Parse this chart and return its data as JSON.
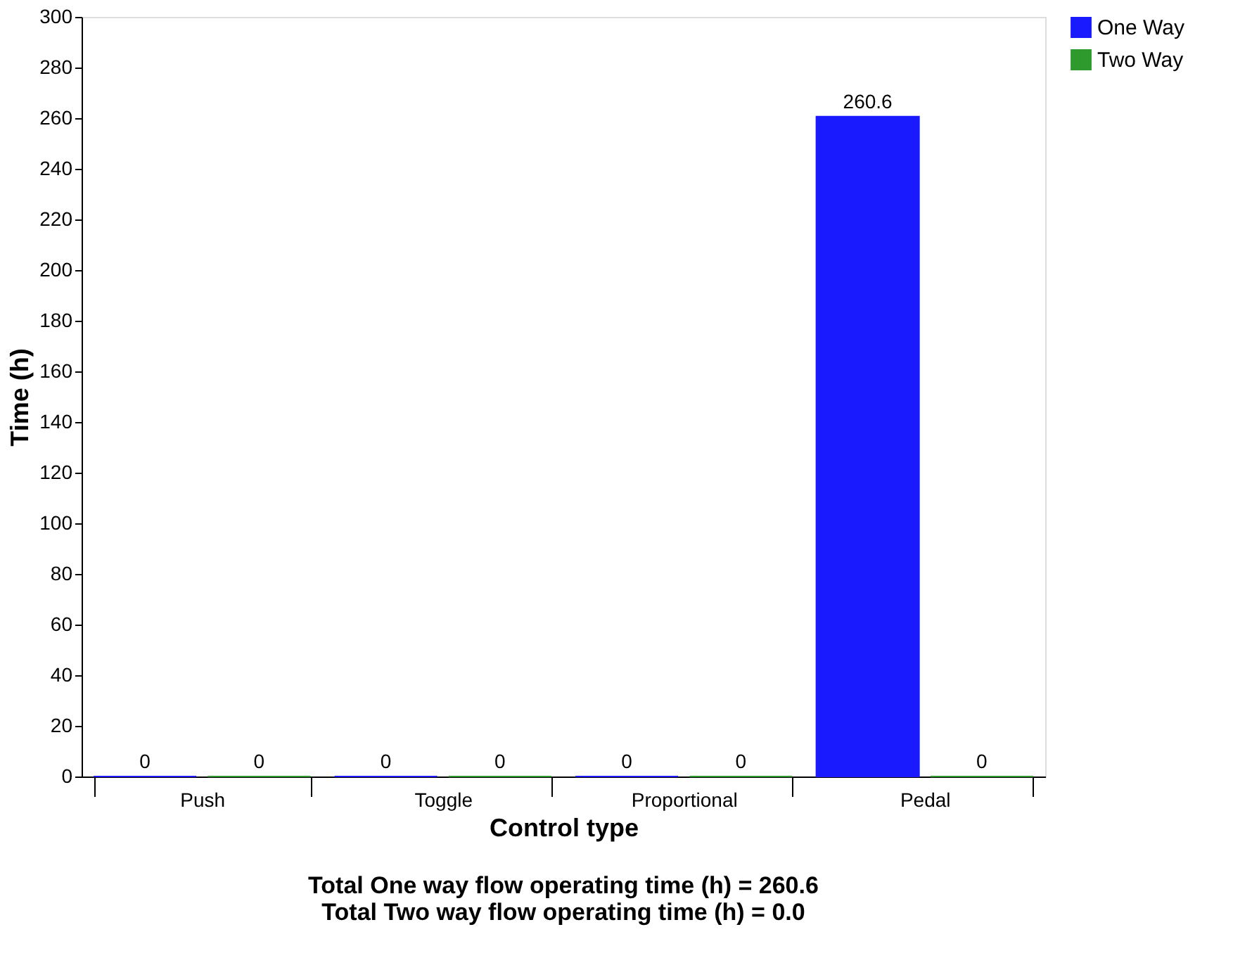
{
  "chart_data": {
    "type": "bar",
    "xlabel": "Control type",
    "ylabel": "Time (h)",
    "categories": [
      "Push",
      "Toggle",
      "Proportional",
      "Pedal"
    ],
    "series": [
      {
        "name": "One Way",
        "color": "#1a1aff",
        "values": [
          0,
          0,
          0,
          260.6
        ]
      },
      {
        "name": "Two Way",
        "color": "#2e9a2e",
        "values": [
          0,
          0,
          0,
          0
        ]
      }
    ],
    "ylim": [
      0,
      300
    ],
    "yticks": [
      0,
      20,
      40,
      60,
      80,
      100,
      120,
      140,
      160,
      180,
      200,
      220,
      240,
      260,
      280,
      300
    ],
    "grid": false,
    "legend": "right",
    "data_labels": true,
    "annotations": [
      "Total One way flow operating time (h) = 260.6",
      "Total Two way flow operating time (h) = 0.0"
    ]
  }
}
